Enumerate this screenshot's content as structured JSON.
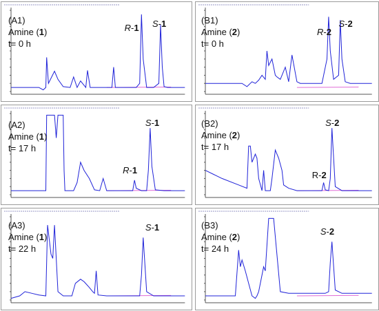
{
  "chart_data": [
    {
      "type": "line",
      "panel_id": "(A1)",
      "line1": "Amine (",
      "bold": "1",
      "line2": "t= 0 h",
      "annotations": [
        {
          "italic": "R",
          "bold": "1",
          "dash": true
        },
        {
          "italic": "S",
          "bold": "1",
          "dash": true
        }
      ],
      "baseline_color": "#e06bd6",
      "trace_color": "#1f22d8",
      "x": [
        0.0,
        0.1,
        0.16,
        0.185,
        0.2,
        0.205,
        0.215,
        0.25,
        0.27,
        0.3,
        0.34,
        0.36,
        0.38,
        0.4,
        0.43,
        0.44,
        0.455,
        0.47,
        0.5,
        0.56,
        0.58,
        0.59,
        0.6,
        0.62,
        0.66,
        0.72,
        0.74,
        0.75,
        0.76,
        0.78,
        0.8,
        0.82,
        0.85,
        0.86,
        0.87,
        0.88,
        0.9,
        1.0
      ],
      "y": [
        0.05,
        0.05,
        0.05,
        0.02,
        0.05,
        0.42,
        0.1,
        0.25,
        0.15,
        0.06,
        0.05,
        0.18,
        0.05,
        0.13,
        0.05,
        0.26,
        0.05,
        0.05,
        0.05,
        0.05,
        0.05,
        0.3,
        0.05,
        0.05,
        0.05,
        0.05,
        0.1,
        0.95,
        0.4,
        0.05,
        0.05,
        0.05,
        0.1,
        0.82,
        0.3,
        0.06,
        0.05,
        0.05
      ]
    },
    {
      "type": "line",
      "panel_id": "(B1)",
      "line1": "Amine (",
      "bold": "2",
      "line2": "t= 0 h",
      "annotations": [
        {
          "italic": "R",
          "bold": "2",
          "dash": true
        },
        {
          "italic": "S",
          "bold": "2",
          "dash": true
        }
      ],
      "baseline_color": "#e06bd6",
      "trace_color": "#1f22d8",
      "x": [
        0.0,
        0.22,
        0.25,
        0.28,
        0.3,
        0.32,
        0.34,
        0.36,
        0.37,
        0.38,
        0.4,
        0.42,
        0.43,
        0.45,
        0.48,
        0.5,
        0.52,
        0.55,
        0.57,
        0.58,
        0.6,
        0.65,
        0.7,
        0.73,
        0.74,
        0.75,
        0.77,
        0.8,
        0.81,
        0.82,
        0.84,
        0.87,
        1.0
      ],
      "y": [
        0.1,
        0.1,
        0.06,
        0.12,
        0.1,
        0.14,
        0.2,
        0.15,
        0.5,
        0.32,
        0.4,
        0.2,
        0.18,
        0.15,
        0.3,
        0.12,
        0.45,
        0.12,
        0.1,
        0.1,
        0.1,
        0.1,
        0.1,
        0.4,
        0.92,
        0.5,
        0.15,
        0.2,
        0.88,
        0.4,
        0.12,
        0.1,
        0.1
      ]
    },
    {
      "type": "line",
      "panel_id": "(A2)",
      "line1": "Amine (",
      "bold": "1",
      "line2": "t= 17 h",
      "annotations": [
        {
          "italic": "R",
          "bold": "1",
          "dash": true
        },
        {
          "italic": "S",
          "bold": "1",
          "dash": true
        }
      ],
      "baseline_color": "#e06bd6",
      "trace_color": "#1f22d8",
      "x": [
        0.0,
        0.16,
        0.2,
        0.205,
        0.21,
        0.25,
        0.26,
        0.27,
        0.3,
        0.305,
        0.31,
        0.36,
        0.38,
        0.4,
        0.42,
        0.45,
        0.48,
        0.51,
        0.53,
        0.55,
        0.6,
        0.65,
        0.68,
        0.7,
        0.71,
        0.72,
        0.75,
        0.78,
        0.79,
        0.8,
        0.81,
        0.83,
        0.88,
        1.0
      ],
      "y": [
        0.05,
        0.05,
        0.05,
        0.98,
        0.98,
        0.98,
        0.7,
        0.98,
        0.98,
        0.3,
        0.05,
        0.05,
        0.15,
        0.4,
        0.3,
        0.2,
        0.06,
        0.05,
        0.2,
        0.05,
        0.05,
        0.05,
        0.05,
        0.05,
        0.18,
        0.08,
        0.05,
        0.05,
        0.3,
        0.82,
        0.35,
        0.06,
        0.05,
        0.05
      ]
    },
    {
      "type": "line",
      "panel_id": "(B2)",
      "line1": "Amine (",
      "bold": "2",
      "line2": "t= 17 h",
      "annotations": [
        {
          "italic": "",
          "plain": "R-",
          "bold": "2",
          "dash": false
        },
        {
          "italic": "S",
          "bold": "2",
          "dash": true
        }
      ],
      "baseline_color": "#e06bd6",
      "trace_color": "#1f22d8",
      "x": [
        0.0,
        0.05,
        0.1,
        0.2,
        0.25,
        0.26,
        0.27,
        0.28,
        0.3,
        0.31,
        0.32,
        0.34,
        0.35,
        0.36,
        0.39,
        0.4,
        0.42,
        0.44,
        0.46,
        0.47,
        0.5,
        0.55,
        0.6,
        0.65,
        0.7,
        0.71,
        0.72,
        0.74,
        0.75,
        0.76,
        0.78,
        0.82,
        1.0
      ],
      "y": [
        0.3,
        0.25,
        0.2,
        0.12,
        0.08,
        0.6,
        0.6,
        0.4,
        0.5,
        0.45,
        0.2,
        0.05,
        0.3,
        0.05,
        0.05,
        0.2,
        0.55,
        0.45,
        0.3,
        0.12,
        0.08,
        0.05,
        0.05,
        0.05,
        0.05,
        0.15,
        0.06,
        0.05,
        0.2,
        0.82,
        0.1,
        0.05,
        0.05
      ]
    },
    {
      "type": "line",
      "panel_id": "(A3)",
      "line1": "Amine (",
      "bold": "1",
      "line2": "t= 22 h",
      "annotations": [
        {
          "italic": "S",
          "bold": "1",
          "dash": true
        }
      ],
      "baseline_color": "#e06bd6",
      "trace_color": "#1f22d8",
      "x": [
        0.0,
        0.05,
        0.08,
        0.12,
        0.16,
        0.2,
        0.21,
        0.23,
        0.24,
        0.25,
        0.27,
        0.3,
        0.35,
        0.37,
        0.4,
        0.42,
        0.45,
        0.47,
        0.48,
        0.49,
        0.5,
        0.55,
        0.6,
        0.65,
        0.7,
        0.74,
        0.75,
        0.76,
        0.78,
        0.82,
        1.0
      ],
      "y": [
        0.02,
        0.05,
        0.1,
        0.08,
        0.06,
        0.05,
        0.9,
        0.55,
        0.5,
        0.9,
        0.1,
        0.05,
        0.05,
        0.2,
        0.25,
        0.22,
        0.15,
        0.1,
        0.08,
        0.35,
        0.06,
        0.05,
        0.05,
        0.05,
        0.05,
        0.05,
        0.3,
        0.75,
        0.1,
        0.05,
        0.05
      ]
    },
    {
      "type": "line",
      "panel_id": "(B3)",
      "line1": "Amine (",
      "bold": "2",
      "line2": "t= 24 h",
      "annotations": [
        {
          "italic": "S",
          "bold": "2",
          "dash": true
        }
      ],
      "baseline_color": "#e06bd6",
      "trace_color": "#1f22d8",
      "x": [
        0.0,
        0.1,
        0.18,
        0.2,
        0.21,
        0.22,
        0.24,
        0.26,
        0.28,
        0.3,
        0.31,
        0.32,
        0.35,
        0.36,
        0.38,
        0.39,
        0.41,
        0.45,
        0.5,
        0.55,
        0.6,
        0.65,
        0.7,
        0.72,
        0.74,
        0.75,
        0.76,
        0.78,
        0.82,
        1.0
      ],
      "y": [
        0.05,
        0.05,
        0.05,
        0.6,
        0.4,
        0.48,
        0.35,
        0.2,
        0.05,
        0.02,
        0.05,
        0.1,
        0.4,
        0.35,
        0.98,
        0.98,
        0.98,
        0.1,
        0.08,
        0.08,
        0.08,
        0.08,
        0.08,
        0.08,
        0.1,
        0.45,
        0.7,
        0.12,
        0.08,
        0.08
      ]
    }
  ]
}
